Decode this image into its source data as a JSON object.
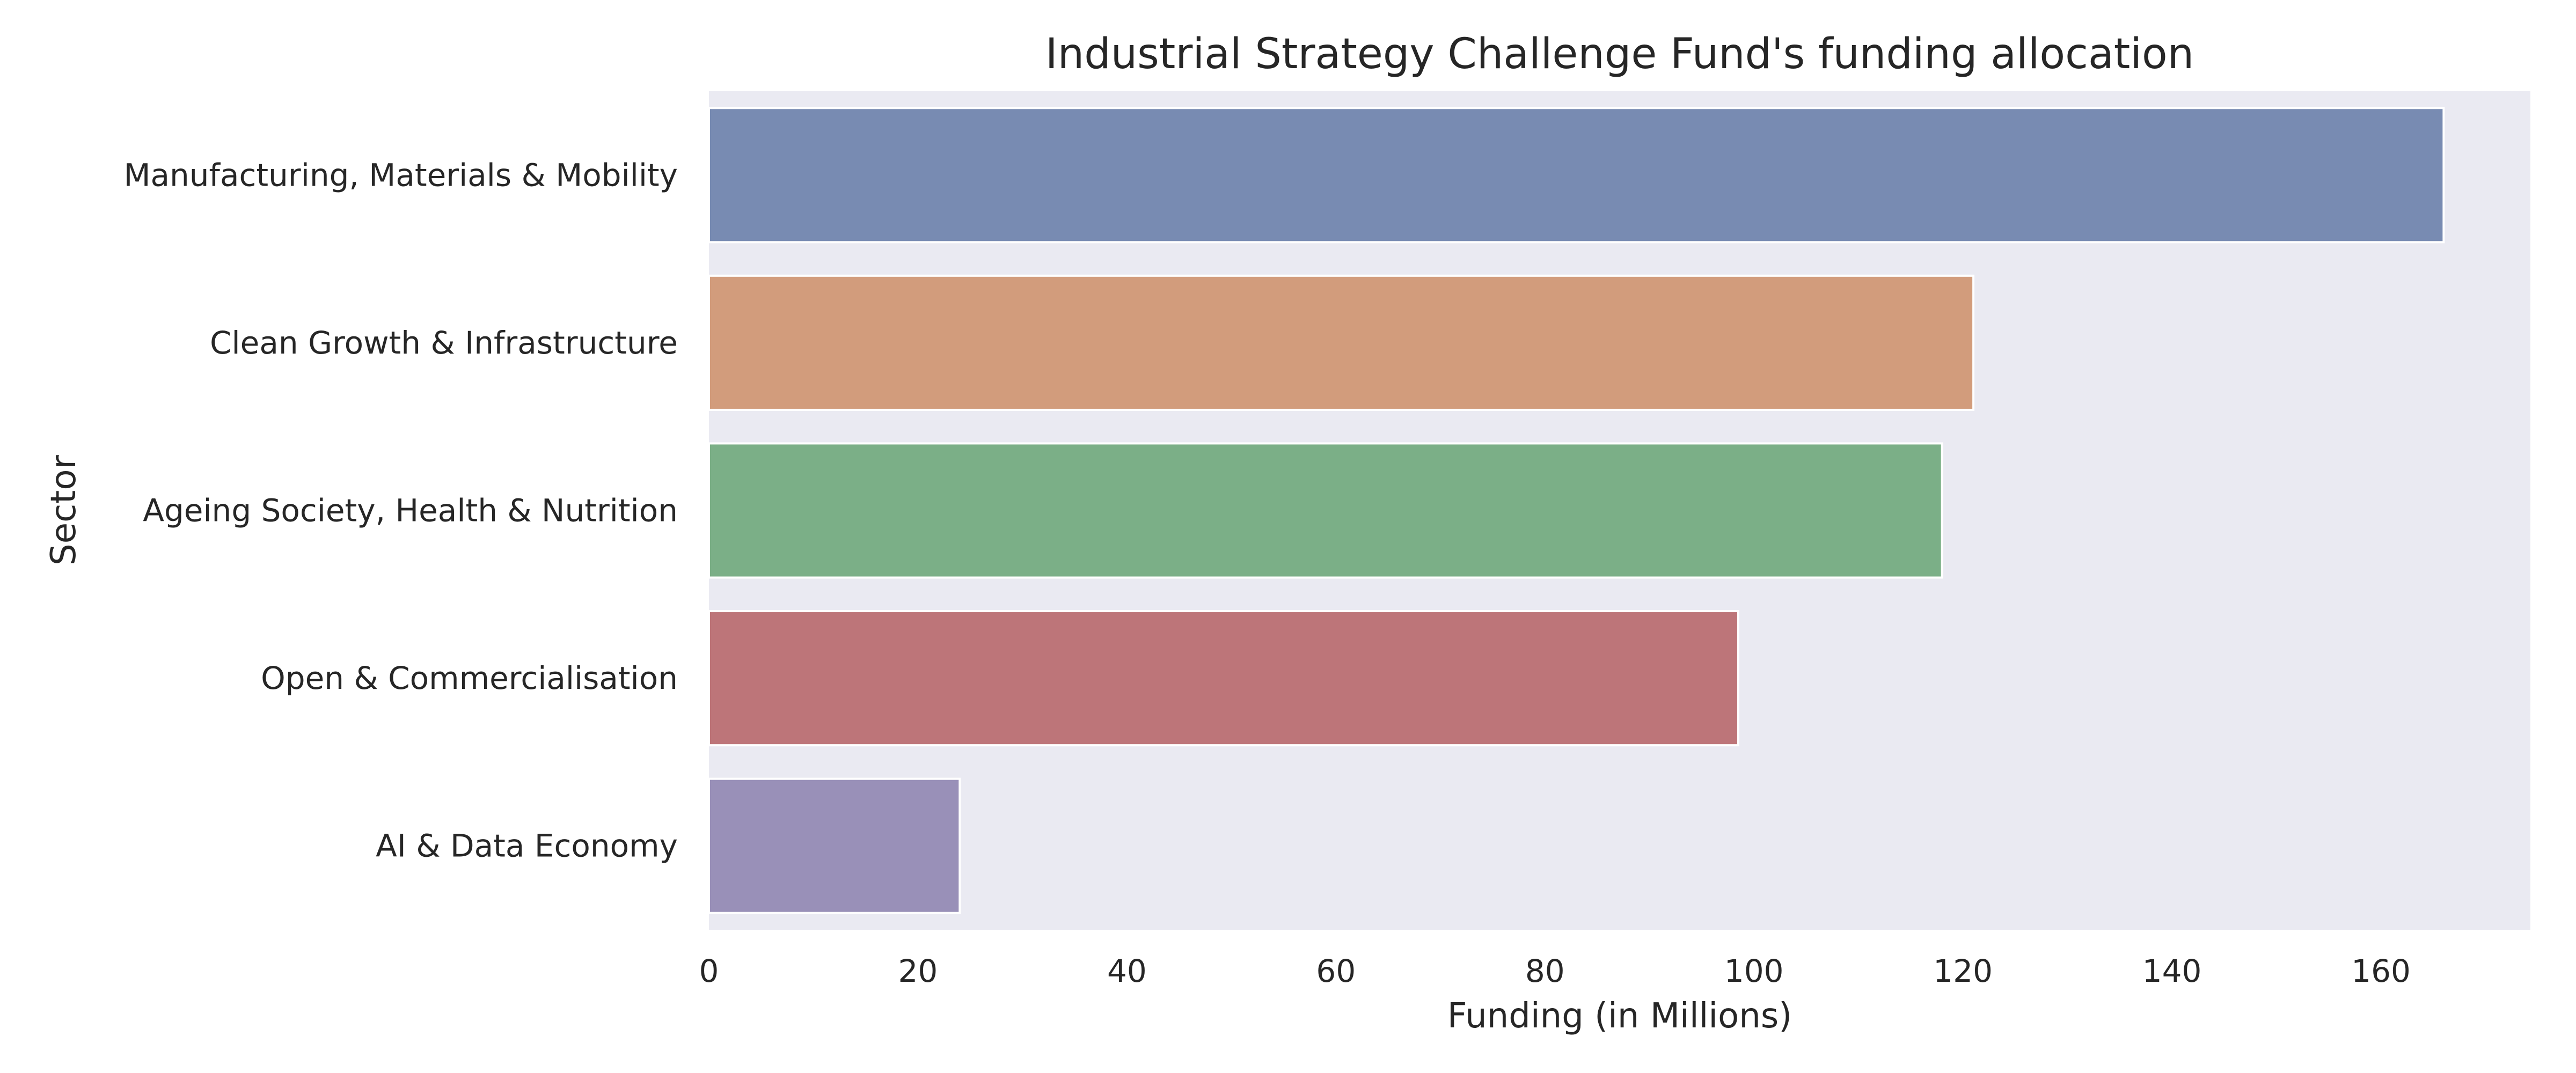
{
  "chart_data": {
    "type": "bar",
    "orientation": "horizontal",
    "title": "Industrial Strategy Challenge Fund's funding allocation",
    "xlabel": "Funding (in Millions)",
    "ylabel": "Sector",
    "categories": [
      "Manufacturing, Materials & Mobility",
      "Clean Growth & Infrastructure",
      "Ageing Society, Health & Nutrition",
      "Open & Commercialisation",
      "AI & Data Economy"
    ],
    "values": [
      166,
      121,
      118,
      98.5,
      24
    ],
    "colors": [
      "#788bb2",
      "#d29c7c",
      "#7baf87",
      "#bd7579",
      "#9990b8"
    ],
    "xlim": [
      0,
      174.3
    ],
    "xticks": [
      0,
      20,
      40,
      60,
      80,
      100,
      120,
      140,
      160
    ],
    "xtick_labels": [
      "0",
      "20",
      "40",
      "60",
      "80",
      "100",
      "120",
      "140",
      "160"
    ],
    "grid": false,
    "background_color": "#eaeaf2"
  }
}
